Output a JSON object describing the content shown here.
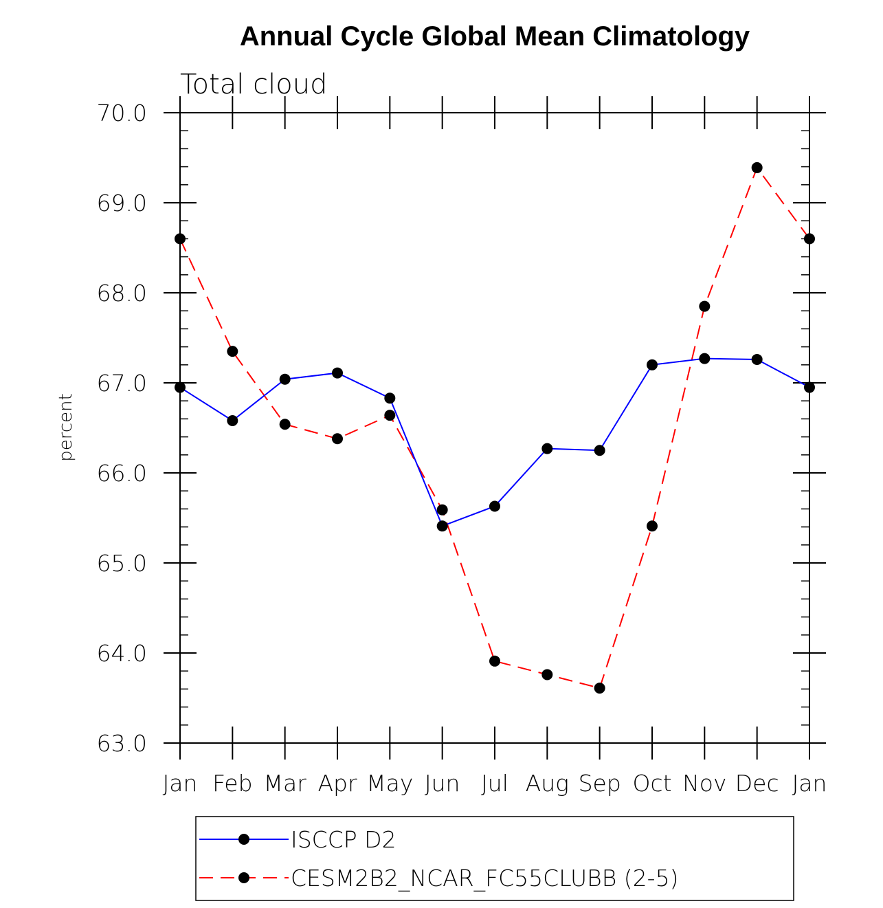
{
  "chart_data": {
    "type": "line",
    "title": "Annual Cycle Global Mean Climatology",
    "subtitle": "Total cloud",
    "xlabel": "",
    "ylabel": "percent",
    "categories": [
      "Jan",
      "Feb",
      "Mar",
      "Apr",
      "May",
      "Jun",
      "Jul",
      "Aug",
      "Sep",
      "Oct",
      "Nov",
      "Dec",
      "Jan"
    ],
    "ylim": [
      63.0,
      70.0
    ],
    "yticks": [
      63.0,
      64.0,
      65.0,
      66.0,
      67.0,
      68.0,
      69.0,
      70.0
    ],
    "ytick_labels": [
      "63.0",
      "64.0",
      "65.0",
      "66.0",
      "67.0",
      "68.0",
      "69.0",
      "70.0"
    ],
    "y_minor_step": 0.2,
    "grid": false,
    "legend_position": "bottom-center",
    "series": [
      {
        "name": "ISCCP D2",
        "color": "#0000ff",
        "line_style": "solid",
        "marker": "filled-circle",
        "values": [
          66.95,
          66.58,
          67.04,
          67.11,
          66.83,
          65.41,
          65.63,
          66.27,
          66.25,
          67.2,
          67.27,
          67.26,
          66.95
        ]
      },
      {
        "name": "CESM2B2_NCAR_FC55CLUBB (2-5)",
        "color": "#ff0000",
        "line_style": "dashed",
        "marker": "filled-circle",
        "values": [
          68.6,
          67.35,
          66.54,
          66.38,
          66.64,
          65.59,
          63.91,
          63.76,
          63.61,
          65.41,
          67.85,
          69.39,
          68.6
        ]
      }
    ]
  }
}
